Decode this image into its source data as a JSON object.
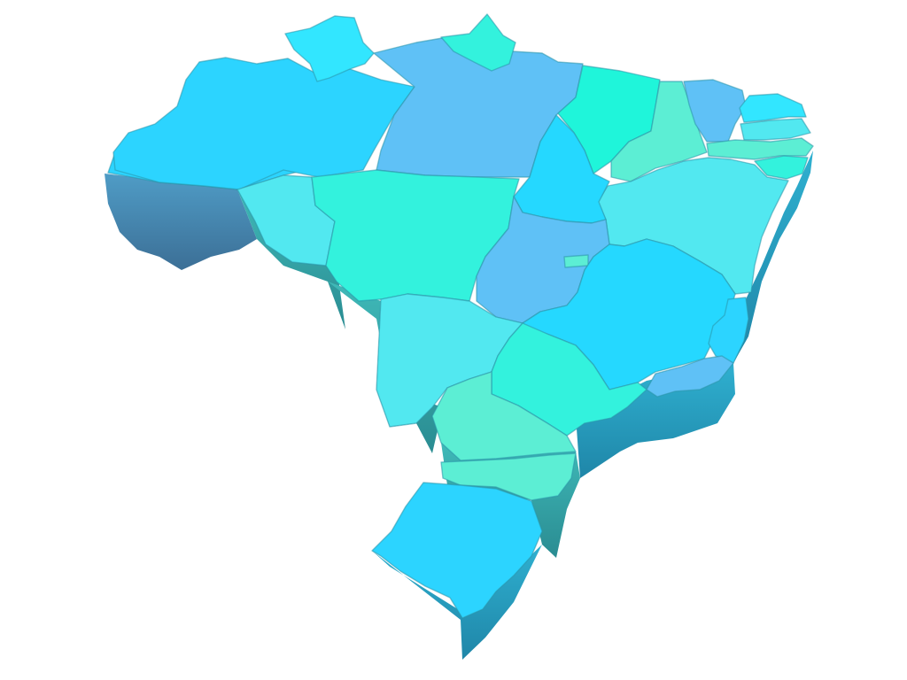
{
  "palette": {
    "azure": "#2cd4ff",
    "steel_blue": "#5fc1f6",
    "sky": "#4ccaf0",
    "turquoise": "#33f2dd",
    "aqua": "#52e8f0",
    "mint": "#5ceed4",
    "sea_green": "#1ff5da",
    "cyan": "#32e6ff",
    "deep_sky": "#25d8ff",
    "shadow_blue": "#4a86ad",
    "shadow_teal": "#2fa7a7"
  },
  "map": {
    "country": "Brazil",
    "style": "3d-extruded-states",
    "states": [
      {
        "id": "acre-amazonas-west",
        "fill": "azure"
      },
      {
        "id": "amazonas",
        "fill": "azure"
      },
      {
        "id": "roraima",
        "fill": "cyan"
      },
      {
        "id": "para",
        "fill": "steel_blue"
      },
      {
        "id": "amapa",
        "fill": "turquoise"
      },
      {
        "id": "maranhao",
        "fill": "sea_green"
      },
      {
        "id": "piaui",
        "fill": "mint"
      },
      {
        "id": "ceara",
        "fill": "steel_blue"
      },
      {
        "id": "rio-grande-do-norte",
        "fill": "cyan"
      },
      {
        "id": "paraiba",
        "fill": "aqua"
      },
      {
        "id": "pernambuco",
        "fill": "mint"
      },
      {
        "id": "alagoas-sergipe",
        "fill": "turquoise"
      },
      {
        "id": "bahia",
        "fill": "aqua"
      },
      {
        "id": "tocantins",
        "fill": "deep_sky"
      },
      {
        "id": "rondonia",
        "fill": "aqua"
      },
      {
        "id": "mato-grosso",
        "fill": "turquoise"
      },
      {
        "id": "goias",
        "fill": "steel_blue"
      },
      {
        "id": "distrito-federal",
        "fill": "mint"
      },
      {
        "id": "minas-gerais",
        "fill": "deep_sky"
      },
      {
        "id": "espirito-santo",
        "fill": "azure"
      },
      {
        "id": "rio-de-janeiro",
        "fill": "steel_blue"
      },
      {
        "id": "mato-grosso-do-sul",
        "fill": "aqua"
      },
      {
        "id": "sao-paulo",
        "fill": "turquoise"
      },
      {
        "id": "parana",
        "fill": "mint"
      },
      {
        "id": "santa-catarina",
        "fill": "mint"
      },
      {
        "id": "rio-grande-do-sul",
        "fill": "azure"
      }
    ]
  }
}
